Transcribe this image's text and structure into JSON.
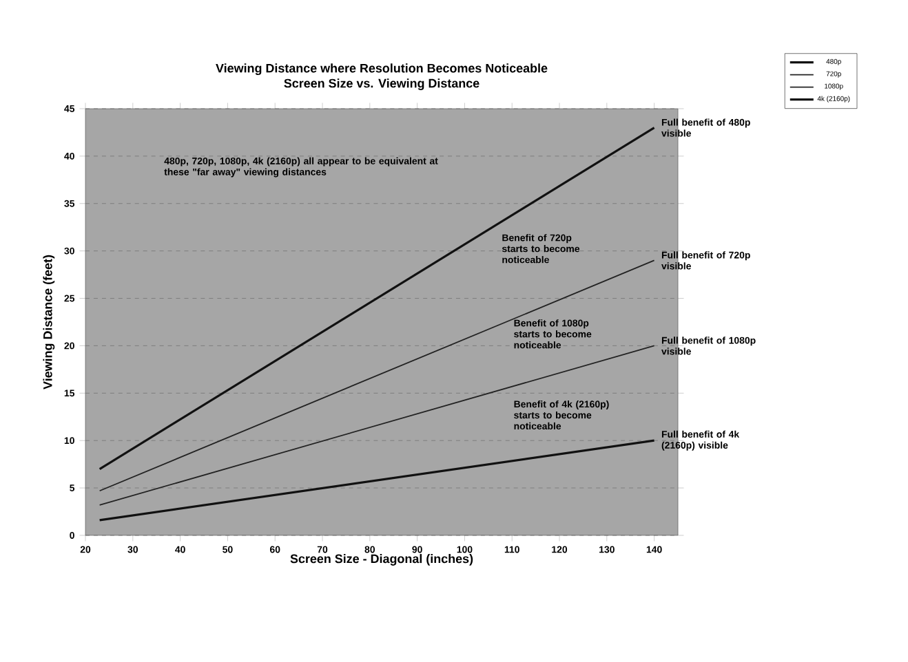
{
  "chart_data": {
    "type": "line",
    "title": "Viewing Distance where Resolution Becomes Noticeable",
    "subtitle": "Screen Size vs. Viewing Distance",
    "xlabel": "Screen Size - Diagonal (inches)",
    "ylabel": "Viewing Distance (feet)",
    "x": [
      23,
      140
    ],
    "series": [
      {
        "name": "480p",
        "color": "#111111",
        "values": [
          7,
          43
        ]
      },
      {
        "name": "720p",
        "color": "#222222",
        "values": [
          4.7,
          29
        ]
      },
      {
        "name": "1080p",
        "color": "#222222",
        "values": [
          3.2,
          20
        ]
      },
      {
        "name": "4k (2160p)",
        "color": "#111111",
        "values": [
          1.6,
          10
        ]
      }
    ],
    "xlim": [
      20,
      145
    ],
    "xticks": [
      20,
      30,
      40,
      50,
      60,
      70,
      80,
      90,
      100,
      110,
      120,
      130,
      140
    ],
    "ylim": [
      0,
      45
    ],
    "yticks": [
      0,
      5,
      10,
      15,
      20,
      25,
      30,
      35,
      40,
      45
    ],
    "grid": "y",
    "legend": "top right",
    "marker": "none",
    "line_style": "solid",
    "annotations": [
      "480p, 720p, 1080p, 4k (2160p) all appear to be equivalent at these \"far away\" viewing distances",
      "Benefit of 720p starts to become noticeable",
      "Benefit of 1080p starts to become noticeable",
      "Benefit of 4k (2160p) starts to become noticeable",
      "Full benefit of 480p visible",
      "Full benefit of 720p visible",
      "Full benefit of 1080p visible",
      "Full benefit of 4k (2160p) visible"
    ]
  }
}
